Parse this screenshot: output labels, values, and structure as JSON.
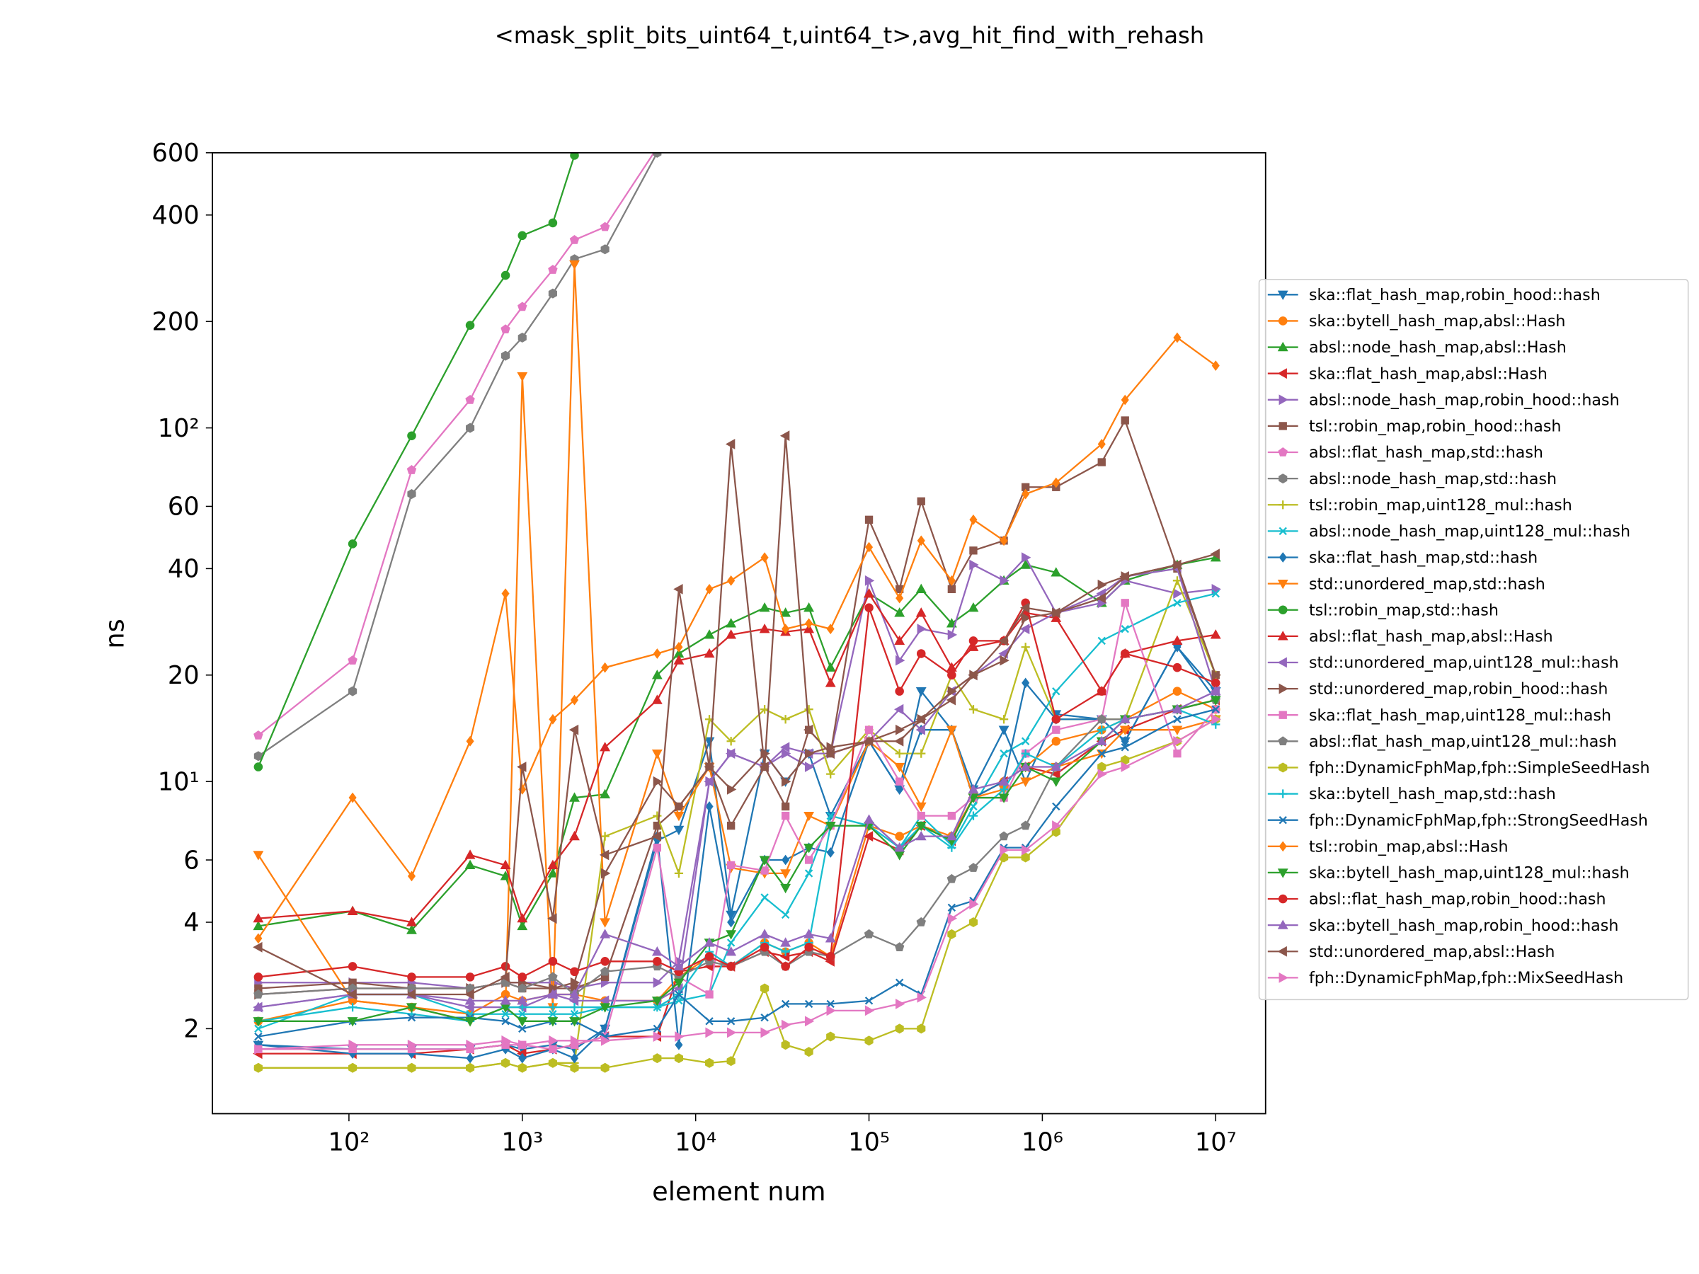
{
  "chart_data": {
    "type": "line",
    "title": "<mask_split_bits_uint64_t,uint64_t>,avg_hit_find_with_rehash",
    "xlabel": "element num",
    "ylabel": "ns",
    "xscale": "log",
    "yscale": "log",
    "legend": "outside right",
    "grid": false,
    "xlim": [
      16.3,
      19400000
    ],
    "ylim": [
      1.15,
      600
    ],
    "xticks": [
      {
        "value": 100,
        "label": "10²"
      },
      {
        "value": 1000,
        "label": "10³"
      },
      {
        "value": 10000,
        "label": "10⁴"
      },
      {
        "value": 100000,
        "label": "10⁵"
      },
      {
        "value": 1000000,
        "label": "10⁶"
      },
      {
        "value": 10000000,
        "label": "10⁷"
      }
    ],
    "yticks": [
      2,
      4,
      6,
      {
        "value": 10,
        "label": "10¹"
      },
      20,
      40,
      60,
      {
        "value": 100,
        "label": "10²"
      },
      200,
      400,
      600
    ],
    "x": [
      30,
      105,
      230,
      500,
      800,
      1000,
      1500,
      2000,
      3000,
      6000,
      8000,
      12000,
      16000,
      25000,
      33000,
      45000,
      60000,
      100000,
      150000,
      200000,
      300000,
      400000,
      600000,
      800000,
      1200000,
      2200000,
      3000000,
      6000000,
      10000000
    ],
    "series": [
      {
        "name": "ska::flat_hash_map,robin_hood::hash",
        "color": "#1f77b4",
        "marker": "v",
        "values": [
          1.8,
          1.75,
          1.75,
          1.75,
          1.8,
          1.75,
          1.8,
          1.75,
          2.0,
          6.8,
          7.3,
          13,
          4.2,
          12,
          10,
          12,
          8,
          13,
          9.5,
          18,
          14,
          9.5,
          14,
          10,
          15.5,
          15,
          13,
          24,
          18
        ]
      },
      {
        "name": "ska::bytell_hash_map,absl::Hash",
        "color": "#ff7f0e",
        "marker": "o",
        "values": [
          2.1,
          2.4,
          2.3,
          2.2,
          2.5,
          2.4,
          2.5,
          2.5,
          2.4,
          2.4,
          2.8,
          3.2,
          3.0,
          3.5,
          3.3,
          3.5,
          3.2,
          7.5,
          7.0,
          7.5,
          7.0,
          9.0,
          10,
          11,
          13,
          14,
          15,
          18,
          16
        ]
      },
      {
        "name": "absl::node_hash_map,absl::Hash",
        "color": "#2ca02c",
        "marker": "^",
        "values": [
          3.9,
          4.3,
          3.8,
          5.8,
          5.4,
          3.9,
          5.5,
          9.0,
          9.2,
          20,
          23,
          26,
          28,
          31,
          30,
          31,
          21,
          34,
          30,
          35,
          28,
          31,
          37,
          41,
          39,
          32,
          37,
          41,
          43
        ]
      },
      {
        "name": "ska::flat_hash_map,absl::Hash",
        "color": "#d62728",
        "marker": "<",
        "values": [
          1.7,
          1.7,
          1.7,
          1.75,
          1.8,
          1.7,
          1.75,
          1.8,
          1.9,
          1.9,
          2.9,
          3.0,
          3.0,
          3.3,
          3.2,
          3.3,
          3.1,
          7.0,
          6.4,
          7.5,
          6.8,
          9.0,
          10,
          11,
          10.5,
          13,
          14,
          16,
          17
        ]
      },
      {
        "name": "absl::node_hash_map,robin_hood::hash",
        "color": "#9467bd",
        "marker": ">",
        "values": [
          2.7,
          2.7,
          2.7,
          2.6,
          2.7,
          2.7,
          2.7,
          2.6,
          2.7,
          2.7,
          3.1,
          10,
          12,
          11,
          12,
          11,
          12,
          37,
          22,
          27,
          26,
          41,
          37,
          43,
          30,
          32,
          37,
          34,
          35
        ]
      },
      {
        "name": "tsl::robin_map,robin_hood::hash",
        "color": "#8c564b",
        "marker": "s",
        "values": [
          2.6,
          2.7,
          2.6,
          2.6,
          2.7,
          2.6,
          2.6,
          2.6,
          2.8,
          7.5,
          8.5,
          11,
          7.5,
          11,
          8.5,
          14,
          12,
          55,
          35,
          62,
          35,
          45,
          48,
          68,
          68,
          80,
          105,
          40,
          20
        ]
      },
      {
        "name": "absl::flat_hash_map,std::hash",
        "color": "#e377c2",
        "marker": "p",
        "values": [
          13.5,
          22,
          76,
          120,
          190,
          220,
          280,
          340,
          370,
          620,
          null,
          null,
          null,
          null,
          null,
          null,
          null,
          null,
          null,
          null,
          null,
          null,
          null,
          null,
          null,
          null,
          null,
          null,
          null
        ]
      },
      {
        "name": "absl::node_hash_map,std::hash",
        "color": "#7f7f7f",
        "marker": "h",
        "values": [
          11.8,
          18,
          65,
          100,
          160,
          180,
          240,
          300,
          320,
          600,
          null,
          null,
          null,
          null,
          null,
          null,
          null,
          null,
          null,
          null,
          null,
          null,
          null,
          null,
          null,
          null,
          null,
          null,
          null
        ]
      },
      {
        "name": "tsl::robin_map,uint128_mul::hash",
        "color": "#bcbd22",
        "marker": "+",
        "values": [
          1.55,
          1.55,
          1.55,
          1.55,
          1.6,
          1.55,
          1.6,
          1.6,
          7,
          8,
          5.5,
          15,
          13,
          16,
          15,
          16,
          10.5,
          14,
          12,
          12,
          20,
          16,
          15,
          24,
          15,
          15,
          15,
          37,
          20
        ]
      },
      {
        "name": "absl::node_hash_map,uint128_mul::hash",
        "color": "#17becf",
        "marker": "x",
        "values": [
          2.0,
          2.5,
          2.5,
          2.2,
          2.2,
          2.2,
          2.2,
          2.2,
          2.3,
          2.3,
          2.4,
          2.5,
          3.5,
          4.7,
          4.2,
          5.5,
          8,
          7.5,
          6.5,
          8,
          6.6,
          8.5,
          12,
          13,
          18,
          25,
          27,
          32,
          34
        ]
      },
      {
        "name": "ska::flat_hash_map,std::hash",
        "color": "#1f77b4",
        "marker": "D",
        "values": [
          1.8,
          1.7,
          1.7,
          1.65,
          1.75,
          1.65,
          1.75,
          1.65,
          2.0,
          7.0,
          1.8,
          8.5,
          4.0,
          6.0,
          6.0,
          6.5,
          6.3,
          13,
          9.5,
          14,
          14,
          9,
          10,
          19,
          15,
          15,
          13,
          24,
          17
        ]
      },
      {
        "name": "std::unordered_map,std::hash",
        "color": "#ff7f0e",
        "marker": "v",
        "values": [
          6.2,
          2.4,
          2.3,
          2.1,
          2.3,
          140,
          2.3,
          290,
          4.0,
          12,
          8,
          11,
          5.7,
          5.5,
          5.5,
          8,
          7.5,
          13,
          11,
          8.5,
          14,
          9,
          9.5,
          10,
          11,
          12,
          14,
          14,
          15
        ]
      },
      {
        "name": "tsl::robin_map,std::hash",
        "color": "#2ca02c",
        "marker": "o",
        "values": [
          11,
          47,
          95,
          195,
          270,
          350,
          380,
          590,
          null,
          null,
          null,
          null,
          null,
          null,
          null,
          null,
          null,
          null,
          null,
          null,
          null,
          null,
          null,
          null,
          null,
          null,
          null,
          null,
          null
        ]
      },
      {
        "name": "absl::flat_hash_map,absl::Hash",
        "color": "#d62728",
        "marker": "^",
        "values": [
          4.1,
          4.3,
          4.0,
          6.2,
          5.8,
          4.1,
          5.8,
          7.0,
          12.5,
          17,
          22,
          23,
          26,
          27,
          26.5,
          27,
          19,
          34,
          25,
          30,
          21,
          24,
          25,
          30,
          29,
          18,
          23,
          25,
          26
        ]
      },
      {
        "name": "std::unordered_map,uint128_mul::hash",
        "color": "#9467bd",
        "marker": "<",
        "values": [
          2.3,
          2.5,
          2.5,
          2.3,
          2.3,
          2.3,
          2.5,
          2.4,
          2.4,
          2.4,
          2.6,
          10,
          12,
          11,
          12.5,
          12,
          12,
          13,
          16,
          14,
          18,
          20,
          23,
          27,
          30,
          34,
          38,
          40,
          18
        ]
      },
      {
        "name": "std::unordered_map,robin_hood::hash",
        "color": "#8c564b",
        "marker": ">",
        "values": [
          2.5,
          2.6,
          2.6,
          2.6,
          2.7,
          2.7,
          2.6,
          2.7,
          5.5,
          10,
          8.5,
          11,
          9.5,
          12,
          10,
          12,
          12.5,
          13,
          14,
          15,
          18,
          20,
          22,
          29,
          30,
          36,
          38,
          41,
          20
        ]
      },
      {
        "name": "ska::flat_hash_map,uint128_mul::hash",
        "color": "#e377c2",
        "marker": "s",
        "values": [
          1.75,
          1.75,
          1.75,
          1.75,
          1.8,
          1.8,
          1.75,
          1.8,
          1.9,
          6.5,
          2.8,
          2.5,
          5.8,
          5.6,
          8,
          6,
          7.5,
          14,
          10,
          8,
          8,
          9,
          9,
          12,
          14,
          15,
          32,
          12,
          16
        ]
      },
      {
        "name": "absl::flat_hash_map,uint128_mul::hash",
        "color": "#7f7f7f",
        "marker": "p",
        "values": [
          2.5,
          2.6,
          2.6,
          2.6,
          2.7,
          2.6,
          2.8,
          2.5,
          2.9,
          3.0,
          2.8,
          3.1,
          3.0,
          3.3,
          3.0,
          3.3,
          3.2,
          3.7,
          3.4,
          4.0,
          5.3,
          5.7,
          7.0,
          7.5,
          11,
          15,
          15,
          16,
          17
        ]
      },
      {
        "name": "fph::DynamicFphMap,fph::SimpleSeedHash",
        "color": "#bcbd22",
        "marker": "h",
        "values": [
          1.55,
          1.55,
          1.55,
          1.55,
          1.6,
          1.55,
          1.6,
          1.55,
          1.55,
          1.65,
          1.65,
          1.6,
          1.62,
          2.6,
          1.8,
          1.72,
          1.9,
          1.85,
          2.0,
          2.0,
          3.7,
          4.0,
          6.1,
          6.1,
          7.2,
          11,
          11.5,
          13,
          15
        ]
      },
      {
        "name": "ska::bytell_hash_map,std::hash",
        "color": "#17becf",
        "marker": "+",
        "values": [
          2.1,
          2.3,
          2.2,
          2.1,
          2.3,
          2.3,
          2.3,
          2.3,
          2.3,
          2.3,
          2.5,
          3.3,
          3.0,
          3.5,
          3.3,
          3.5,
          7.5,
          7.5,
          6.5,
          7.5,
          6.5,
          8,
          9.5,
          12,
          11,
          14,
          15,
          16,
          14.5
        ]
      },
      {
        "name": "fph::DynamicFphMap,fph::StrongSeedHash",
        "color": "#1f77b4",
        "marker": "x",
        "values": [
          1.9,
          2.1,
          2.15,
          2.15,
          2.1,
          2.0,
          2.1,
          2.1,
          1.9,
          2.0,
          2.5,
          2.1,
          2.1,
          2.15,
          2.35,
          2.35,
          2.35,
          2.4,
          2.7,
          2.5,
          4.4,
          4.6,
          6.5,
          6.5,
          8.5,
          12,
          12.5,
          15,
          16
        ]
      },
      {
        "name": "tsl::robin_map,absl::Hash",
        "color": "#ff7f0e",
        "marker": "D",
        "values": [
          3.6,
          9,
          5.4,
          13,
          34,
          9.5,
          15,
          17,
          21,
          23,
          24,
          35,
          37,
          43,
          27,
          28,
          27,
          46,
          33,
          48,
          37,
          55,
          48,
          65,
          70,
          90,
          120,
          180,
          150
        ]
      },
      {
        "name": "ska::bytell_hash_map,uint128_mul::hash",
        "color": "#2ca02c",
        "marker": "v",
        "values": [
          2.1,
          2.1,
          2.3,
          2.1,
          2.3,
          2.1,
          2.1,
          2.1,
          2.3,
          2.4,
          2.7,
          3.5,
          3.7,
          6,
          5,
          6.5,
          7.5,
          7.5,
          6.2,
          7.5,
          6.8,
          9,
          9,
          11,
          10,
          13,
          15,
          16,
          17
        ]
      },
      {
        "name": "absl::flat_hash_map,robin_hood::hash",
        "color": "#d62728",
        "marker": "o",
        "values": [
          2.8,
          3.0,
          2.8,
          2.8,
          3.0,
          2.8,
          3.1,
          2.9,
          3.1,
          3.1,
          2.9,
          3.2,
          3.0,
          3.4,
          3.0,
          3.4,
          3.2,
          31,
          18,
          23,
          20,
          25,
          25,
          32,
          15,
          18,
          23,
          21,
          19
        ]
      },
      {
        "name": "ska::bytell_hash_map,robin_hood::hash",
        "color": "#9467bd",
        "marker": "^",
        "values": [
          2.3,
          2.5,
          2.5,
          2.4,
          2.4,
          2.4,
          2.5,
          2.5,
          3.7,
          3.3,
          3.0,
          3.5,
          3.3,
          3.7,
          3.5,
          3.7,
          3.6,
          7.8,
          6.5,
          7.0,
          7.0,
          9.5,
          10,
          11,
          11,
          13,
          15,
          16,
          18
        ]
      },
      {
        "name": "std::unordered_map,absl::Hash",
        "color": "#8c564b",
        "marker": "<",
        "values": [
          3.4,
          2.5,
          2.5,
          2.5,
          2.8,
          11,
          4.1,
          14,
          6.2,
          7,
          35,
          11,
          90,
          11,
          95,
          14,
          12,
          13,
          13,
          15,
          17,
          20,
          25,
          31,
          30,
          33,
          38,
          41,
          44
        ]
      },
      {
        "name": "fph::DynamicFphMap,fph::MixSeedHash",
        "color": "#e377c2",
        "marker": ">",
        "values": [
          1.75,
          1.8,
          1.8,
          1.8,
          1.85,
          1.8,
          1.85,
          1.85,
          1.85,
          1.9,
          1.9,
          1.95,
          1.95,
          1.95,
          2.05,
          2.1,
          2.25,
          2.25,
          2.35,
          2.45,
          4.1,
          4.5,
          6.4,
          6.4,
          7.5,
          10.5,
          11,
          13,
          15
        ]
      }
    ]
  }
}
